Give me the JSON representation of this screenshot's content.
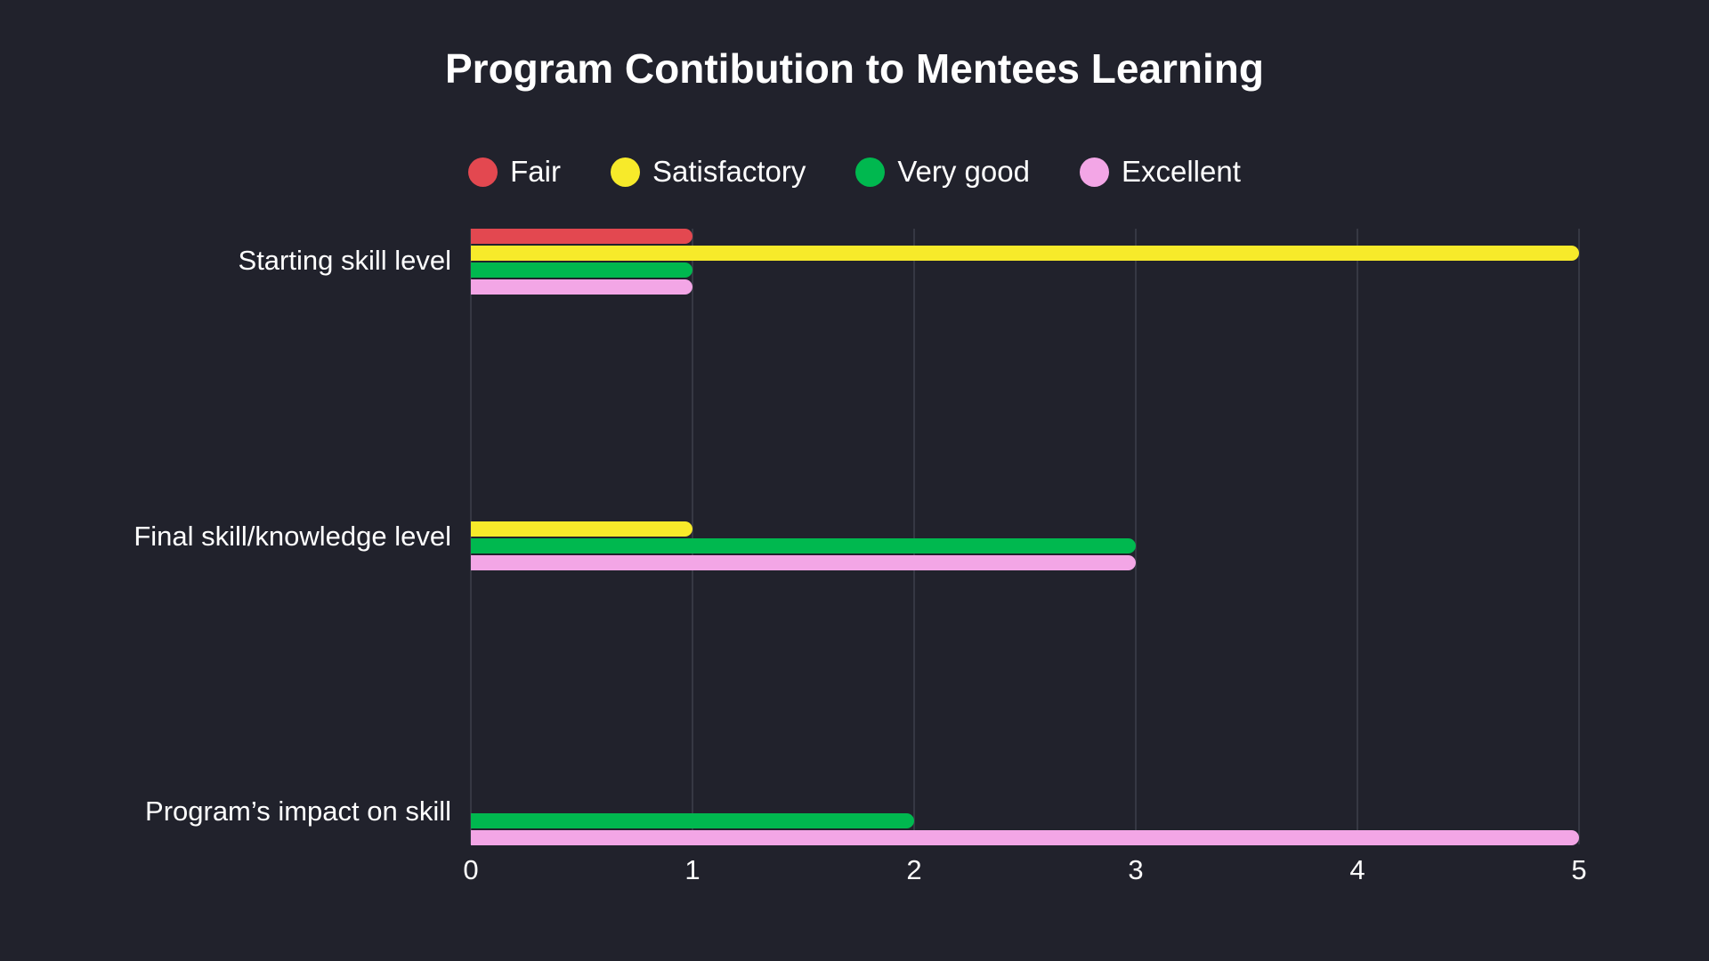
{
  "chart_data": {
    "type": "bar",
    "orientation": "horizontal",
    "title": "Program Contibution to Mentees Learning",
    "categories": [
      "Starting skill level",
      "Final skill/knowledge level",
      "Program’s impact on skill"
    ],
    "series": [
      {
        "name": "Fair",
        "color": "#e34850",
        "values": [
          1,
          0,
          0
        ]
      },
      {
        "name": "Satisfactory",
        "color": "#f7ea2a",
        "values": [
          5,
          1,
          0
        ]
      },
      {
        "name": "Very good",
        "color": "#00b84f",
        "values": [
          1,
          3,
          2
        ]
      },
      {
        "name": "Excellent",
        "color": "#f3a6e6",
        "values": [
          1,
          3,
          5
        ]
      }
    ],
    "xlim": [
      0,
      5
    ],
    "xticks": [
      "0",
      "1",
      "2",
      "3",
      "4",
      "5"
    ],
    "xlabel": "",
    "ylabel": "",
    "grid": "vertical",
    "legend": "top"
  }
}
